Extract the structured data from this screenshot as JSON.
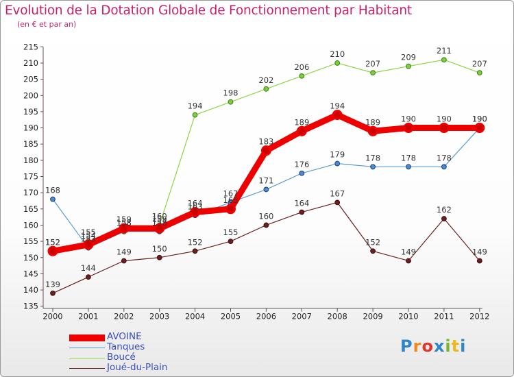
{
  "header": {
    "title": "Evolution de la Dotation Globale de Fonctionnement par Habitant",
    "subtitle": "(en € et par an)"
  },
  "logo": {
    "text": "Proxiti",
    "colors": [
      "#2e86c8",
      "#f08a1c",
      "#e0352b",
      "#2e86c8",
      "#7ab42a",
      "#f0b81c",
      "#2e86c8"
    ]
  },
  "chart_data": {
    "type": "line",
    "x": [
      "2000",
      "2001",
      "2002",
      "2003",
      "2004",
      "2005",
      "2006",
      "2007",
      "2008",
      "2009",
      "2010",
      "2011",
      "2012"
    ],
    "ylim": [
      135,
      215
    ],
    "yticks": [
      135,
      140,
      145,
      150,
      155,
      160,
      165,
      170,
      175,
      180,
      185,
      190,
      195,
      200,
      205,
      210,
      215
    ],
    "grid": false,
    "legend_position": "bottom-left",
    "series": [
      {
        "name": "AVOINE",
        "color": "#ee0000",
        "values": [
          152,
          154,
          159,
          159,
          164,
          165,
          183,
          189,
          194,
          189,
          190,
          190,
          190
        ]
      },
      {
        "name": "Tanques",
        "color": "#5b9bd5",
        "values": [
          168,
          153,
          158,
          158,
          163,
          167,
          171,
          176,
          179,
          178,
          178,
          178,
          190
        ]
      },
      {
        "name": "Boucé",
        "color": "#8ed445",
        "values": [
          152,
          155,
          158,
          160,
          194,
          198,
          202,
          206,
          210,
          207,
          209,
          211,
          207
        ]
      },
      {
        "name": "Joué-du-Plain",
        "color": "#6b1f1f",
        "values": [
          139,
          144,
          149,
          150,
          152,
          155,
          160,
          164,
          167,
          152,
          149,
          162,
          149
        ]
      }
    ]
  }
}
